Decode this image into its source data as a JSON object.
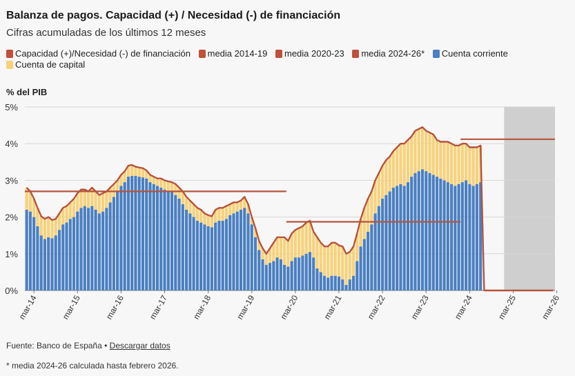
{
  "header": {
    "title": "Balanza de pagos. Capacidad (+) / Necesidad (-) de financiación",
    "subtitle": "Cifras acumuladas de los últimos 12 meses"
  },
  "legend": [
    {
      "label": "Capacidad (+)/Necesidad (-) de financiación",
      "color": "#c0503a"
    },
    {
      "label": "media 2014-19",
      "color": "#c0503a"
    },
    {
      "label": "media 2020-23",
      "color": "#c0503a"
    },
    {
      "label": "media 2024-26*",
      "color": "#c0503a"
    },
    {
      "label": "Cuenta corriente",
      "color": "#4a7fc1"
    },
    {
      "label": "Cuenta de capital",
      "color": "#f7d27a"
    }
  ],
  "footer": {
    "source_text": "Fuente: Banco de España •",
    "download_label": "Descargar datos",
    "footnote": "* media 2024-26 calculada hasta febrero 2026."
  },
  "chart_data": {
    "type": "bar",
    "stacked": true,
    "ylabel": "% del PIB",
    "ylim": [
      0,
      5
    ],
    "yticks": [
      "0%",
      "1%",
      "2%",
      "3%",
      "4%",
      "5%"
    ],
    "x_start": "2014-01",
    "x_end": "2026-02",
    "xticks": [
      "mar-14",
      "mar-15",
      "mar-16",
      "mar-17",
      "mar-18",
      "mar-19",
      "mar-20",
      "mar-21",
      "mar-22",
      "mar-23",
      "mar-24",
      "mar-25",
      "mar-26"
    ],
    "shaded_period": {
      "from": "2025-01",
      "to": "2026-02"
    },
    "colors": {
      "current": "#4a7fc1",
      "capital": "#f7d27a",
      "total": "#b5533c",
      "shade": "#cfcfcf"
    },
    "series": [
      {
        "name": "Cuenta corriente",
        "values": [
          2.2,
          2.15,
          2.0,
          1.75,
          1.5,
          1.4,
          1.45,
          1.42,
          1.5,
          1.65,
          1.8,
          1.85,
          1.95,
          2.0,
          2.15,
          2.25,
          2.3,
          2.25,
          2.3,
          2.2,
          2.1,
          2.15,
          2.25,
          2.4,
          2.55,
          2.7,
          2.85,
          2.95,
          3.1,
          3.12,
          3.12,
          3.1,
          3.08,
          3.05,
          2.95,
          2.9,
          2.85,
          2.8,
          2.75,
          2.72,
          2.7,
          2.6,
          2.5,
          2.35,
          2.2,
          2.1,
          2.0,
          1.9,
          1.85,
          1.8,
          1.75,
          1.72,
          1.85,
          1.9,
          1.9,
          1.95,
          2.05,
          2.1,
          2.15,
          2.2,
          2.25,
          2.1,
          1.8,
          1.45,
          1.1,
          0.85,
          0.7,
          0.75,
          0.8,
          0.9,
          0.85,
          0.7,
          0.65,
          0.8,
          0.9,
          0.9,
          0.95,
          1.0,
          1.05,
          0.9,
          0.6,
          0.5,
          0.4,
          0.35,
          0.4,
          0.4,
          0.38,
          0.3,
          0.15,
          0.3,
          0.4,
          0.8,
          1.2,
          1.4,
          1.6,
          1.8,
          2.1,
          2.3,
          2.5,
          2.6,
          2.7,
          2.8,
          2.85,
          2.9,
          2.85,
          2.95,
          3.1,
          3.2,
          3.25,
          3.3,
          3.25,
          3.2,
          3.15,
          3.1,
          3.05,
          3.0,
          2.95,
          2.9,
          2.85,
          2.9,
          2.95,
          3.0,
          2.9,
          2.85,
          2.9,
          2.95
        ]
      },
      {
        "name": "Cuenta de capital",
        "values": [
          0.6,
          0.55,
          0.5,
          0.5,
          0.52,
          0.55,
          0.55,
          0.5,
          0.45,
          0.45,
          0.45,
          0.45,
          0.45,
          0.5,
          0.5,
          0.5,
          0.45,
          0.45,
          0.5,
          0.5,
          0.5,
          0.5,
          0.45,
          0.4,
          0.35,
          0.3,
          0.3,
          0.3,
          0.3,
          0.3,
          0.25,
          0.25,
          0.25,
          0.22,
          0.2,
          0.2,
          0.2,
          0.25,
          0.25,
          0.25,
          0.25,
          0.3,
          0.3,
          0.35,
          0.35,
          0.35,
          0.35,
          0.35,
          0.35,
          0.3,
          0.3,
          0.3,
          0.35,
          0.35,
          0.35,
          0.35,
          0.3,
          0.3,
          0.25,
          0.25,
          0.3,
          0.25,
          0.2,
          0.25,
          0.25,
          0.3,
          0.3,
          0.4,
          0.5,
          0.55,
          0.6,
          0.75,
          0.7,
          0.75,
          0.75,
          0.8,
          0.8,
          0.85,
          0.85,
          0.7,
          0.85,
          0.8,
          0.8,
          0.85,
          0.9,
          0.9,
          0.85,
          0.9,
          0.85,
          0.75,
          0.8,
          0.75,
          0.75,
          0.85,
          0.9,
          0.9,
          0.9,
          0.9,
          0.9,
          0.95,
          0.95,
          1.0,
          1.05,
          1.1,
          1.15,
          1.15,
          1.1,
          1.15,
          1.15,
          1.15,
          1.1,
          1.1,
          1.1,
          1.0,
          1.0,
          1.05,
          1.1,
          1.1,
          1.1,
          1.05,
          1.05,
          1.0,
          1.0,
          1.05,
          1.0,
          1.0
        ]
      }
    ],
    "averages": [
      {
        "name": "media 2014-19",
        "from": "2014-01",
        "to": "2019-12",
        "value": 2.7
      },
      {
        "name": "media 2020-23",
        "from": "2020-01",
        "to": "2023-12",
        "value": 1.87
      },
      {
        "name": "media 2024-26*",
        "from": "2024-01",
        "to": "2026-02",
        "value": 4.12
      }
    ]
  }
}
